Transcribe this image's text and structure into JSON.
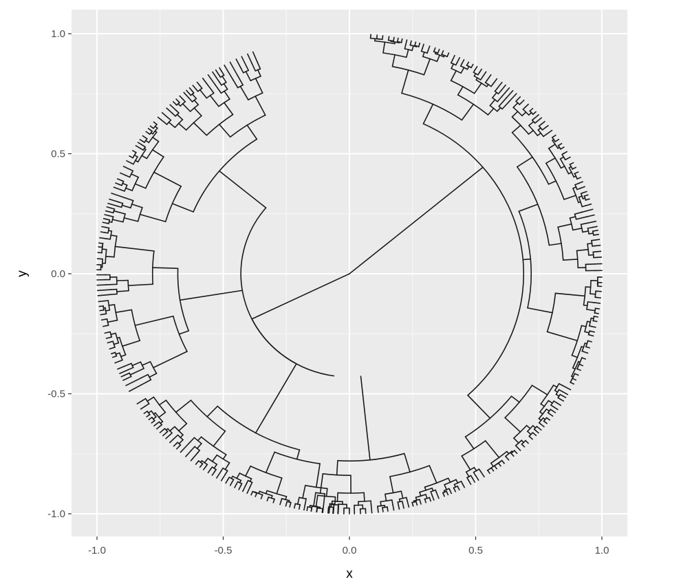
{
  "chart_data": {
    "type": "dendrogram",
    "layout": "circular",
    "title": "",
    "xlabel": "x",
    "ylabel": "y",
    "xlim": [
      -1.1,
      1.1
    ],
    "ylim": [
      -1.1,
      1.1
    ],
    "x_ticks": [
      -1.0,
      -0.5,
      0.0,
      0.5,
      1.0
    ],
    "y_ticks": [
      -1.0,
      -0.5,
      0.0,
      0.5,
      1.0
    ],
    "x_tick_labels": [
      "-1.0",
      "-0.5",
      "0.0",
      "0.5",
      "1.0"
    ],
    "y_tick_labels": [
      "1.0",
      "0.5",
      "0.0",
      "-0.5",
      "-1.0"
    ],
    "grid": true,
    "legend": "none",
    "tree": {
      "root": {
        "r": 0.0
      },
      "main_branches": [
        {
          "name_hint": "left clade",
          "node_radius": 0.43,
          "angle_span_deg": [
            -94,
            156
          ],
          "children": [
            {
              "node_radius": 0.67,
              "angle_span_deg": [
                118,
                195
              ]
            },
            {
              "node_radius": 0.73,
              "angle_span_deg": [
                195,
                220
              ]
            },
            {
              "node_radius": 0.76,
              "angle_span_deg": [
                222,
                266
              ]
            }
          ]
        },
        {
          "name_hint": "right clade",
          "node_radius": 0.69,
          "angle_span_deg": [
            -55,
            82
          ],
          "children": [
            {
              "node_radius": 0.72,
              "angle_span_deg": [
                -40,
                45
              ]
            },
            {
              "node_radius": 0.78,
              "angle_span_deg": [
                45,
                82
              ]
            },
            {
              "node_radius": 0.82,
              "angle_span_deg": [
                -62,
                -40
              ]
            }
          ]
        }
      ],
      "leaf_radius": 1.0,
      "approx_leaf_count": 130
    },
    "colors": {
      "panel": "#ebebeb",
      "grid_major": "#ffffff",
      "grid_minor": "#f5f5f5",
      "line": "#1a1a1a",
      "tick_text": "#4d4d4d"
    }
  }
}
